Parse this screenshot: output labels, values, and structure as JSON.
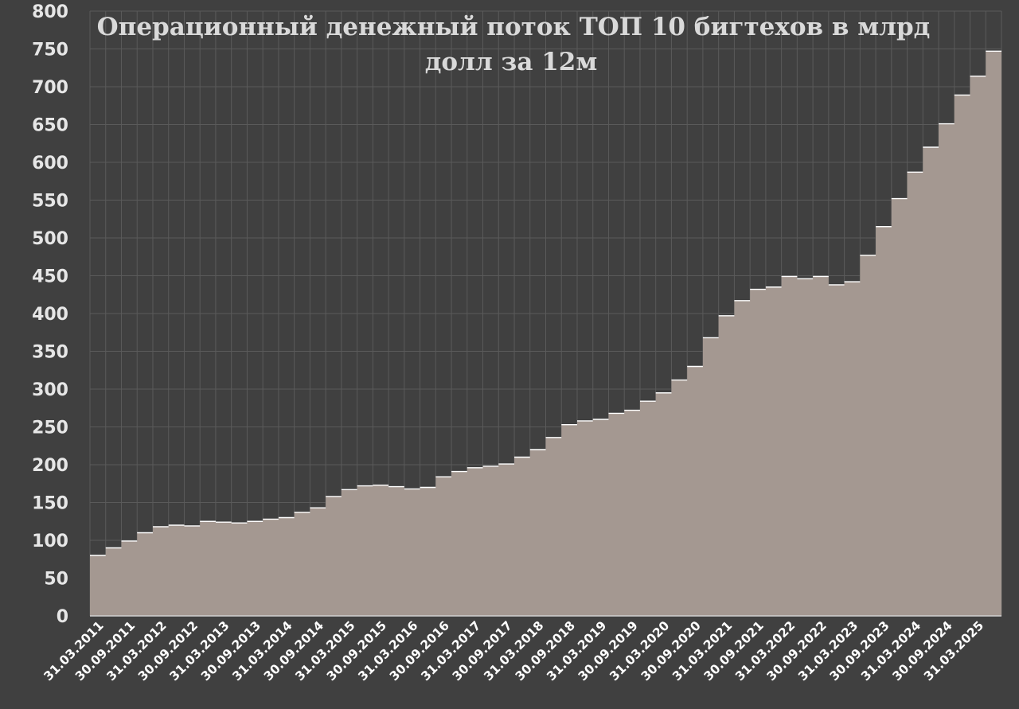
{
  "chart_data": {
    "type": "area",
    "title_lines": [
      "Операционный денежный поток ТОП 10 бигтехов в млрд",
      "долл за 12м"
    ],
    "xlabel": "",
    "ylabel": "",
    "ylim": [
      0,
      800
    ],
    "y_ticks": [
      0,
      50,
      100,
      150,
      200,
      250,
      300,
      350,
      400,
      450,
      500,
      550,
      600,
      650,
      700,
      750,
      800
    ],
    "grid": true,
    "legend": "none",
    "x": [
      "31.03.2011",
      "30.06.2011",
      "30.09.2011",
      "31.12.2011",
      "31.03.2012",
      "30.06.2012",
      "30.09.2012",
      "31.12.2012",
      "31.03.2013",
      "30.06.2013",
      "30.09.2013",
      "31.12.2013",
      "31.03.2014",
      "30.06.2014",
      "30.09.2014",
      "31.12.2014",
      "31.03.2015",
      "30.06.2015",
      "30.09.2015",
      "31.12.2015",
      "31.03.2016",
      "30.06.2016",
      "30.09.2016",
      "31.12.2016",
      "31.03.2017",
      "30.06.2017",
      "30.09.2017",
      "31.12.2017",
      "31.03.2018",
      "30.06.2018",
      "30.09.2018",
      "31.12.2018",
      "31.03.2019",
      "30.06.2019",
      "30.09.2019",
      "31.12.2019",
      "31.03.2020",
      "30.06.2020",
      "30.09.2020",
      "31.12.2020",
      "31.03.2021",
      "30.06.2021",
      "30.09.2021",
      "31.12.2021",
      "31.03.2022",
      "30.06.2022",
      "30.09.2022",
      "31.12.2022",
      "31.03.2023",
      "30.06.2023",
      "30.09.2023",
      "31.12.2023",
      "31.03.2024",
      "30.06.2024",
      "30.09.2024",
      "31.12.2024",
      "31.03.2025",
      "30.06.2025"
    ],
    "x_tick_labels": [
      "31.03.2011",
      "30.09.2011",
      "31.03.2012",
      "30.09.2012",
      "31.03.2013",
      "30.09.2013",
      "31.03.2014",
      "30.09.2014",
      "31.03.2015",
      "30.09.2015",
      "31.03.2016",
      "30.09.2016",
      "31.03.2017",
      "30.09.2017",
      "31.03.2018",
      "30.09.2018",
      "31.03.2019",
      "30.09.2019",
      "31.03.2020",
      "30.09.2020",
      "31.03.2021",
      "30.09.2021",
      "31.03.2022",
      "30.09.2022",
      "31.03.2023",
      "30.09.2023",
      "31.03.2024",
      "30.09.2024",
      "31.03.2025"
    ],
    "values": [
      80,
      90,
      99,
      110,
      118,
      120,
      119,
      125,
      124,
      123,
      125,
      128,
      130,
      137,
      143,
      158,
      167,
      172,
      173,
      171,
      168,
      170,
      184,
      191,
      196,
      198,
      201,
      210,
      220,
      236,
      253,
      258,
      260,
      268,
      272,
      284,
      295,
      312,
      330,
      368,
      397,
      417,
      432,
      435,
      449,
      446,
      449,
      438,
      442,
      477,
      515,
      552,
      587,
      620,
      651,
      689,
      714,
      747
    ],
    "colors": {
      "background": "#404040",
      "grid": "#5a5a5a",
      "area": "#a49891",
      "area_edge": "#ffffff",
      "title": "#d9d9d9",
      "tick_text": "#e6e6e6"
    }
  }
}
